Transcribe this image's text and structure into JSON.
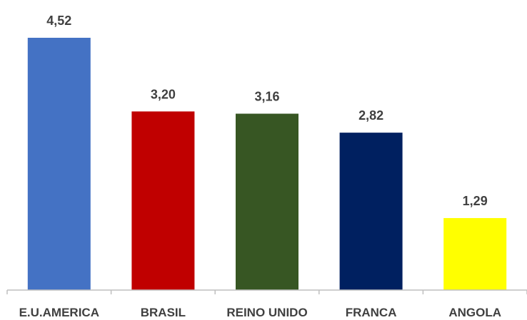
{
  "chart_data": {
    "type": "bar",
    "categories": [
      "E.U.AMERICA",
      "BRASIL",
      "REINO UNIDO",
      "FRANCA",
      "ANGOLA"
    ],
    "values": [
      4.52,
      3.2,
      3.16,
      2.82,
      1.29
    ],
    "value_labels": [
      "4,52",
      "3,20",
      "3,16",
      "2,82",
      "1,29"
    ],
    "colors": [
      "#4472C4",
      "#C00000",
      "#375623",
      "#002060",
      "#FFFF00"
    ],
    "title": "",
    "xlabel": "",
    "ylabel": "",
    "ylim": [
      0,
      4.52
    ],
    "grid": false,
    "legend": "none",
    "axis_color": "#BFBFBF"
  }
}
